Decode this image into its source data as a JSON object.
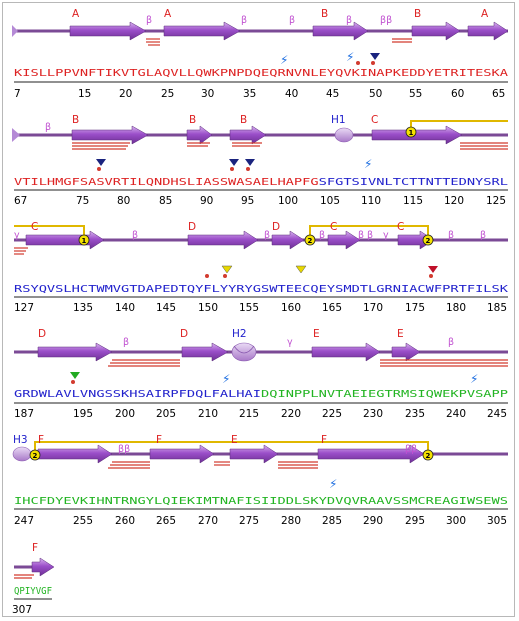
{
  "colors": {
    "strand": "#9b4fc9",
    "strand_light": "#c89ae6",
    "coil": "#7b4a96",
    "hairpin": "#d23b2f",
    "disulfide": "#e0b800",
    "seq_red": "#dd2222",
    "seq_blue": "#2222cc",
    "seq_green": "#22b422",
    "helix": "#c9a2e0"
  },
  "rows": [
    {
      "segments": [
        {
          "text": "KISLLPPVNFTIKVTGLAQVLLQWKPNPDQEQRNVNLEYQVKINAPKEDDYETRITESKA",
          "color": "seq_red"
        }
      ],
      "numbers": [
        "7",
        "15",
        "20",
        "25",
        "30",
        "35",
        "40",
        "45",
        "50",
        "55",
        "60",
        "65"
      ],
      "labels": [
        "A",
        "A",
        "B",
        "B",
        "A",
        "β",
        "β",
        "β",
        "β",
        "ββ"
      ],
      "markers": [
        "bolt",
        "bolt",
        "triangle-navy"
      ]
    },
    {
      "segments": [
        {
          "text": "VTILHMGFSASVRTILQNDHSLIASSWASAELHAPFG",
          "color": "seq_red"
        },
        {
          "text": "SFGTSIVNLTCTTNTTEDNYSRL",
          "color": "seq_blue"
        }
      ],
      "numbers": [
        "67",
        "75",
        "80",
        "85",
        "90",
        "95",
        "100",
        "105",
        "110",
        "115",
        "120",
        "125"
      ],
      "labels": [
        "B",
        "B",
        "B",
        "H1",
        "C",
        "β"
      ],
      "markers": [
        "bolt",
        "triangle-navy",
        "triangle-navy",
        "triangle-navy",
        "bond-1"
      ]
    },
    {
      "segments": [
        {
          "text": "RSYQVSLHCTWMVGTDAPEDTQYFLYYRYGSWTEECQEYSMDTLGRNIACWFPRTFILSK",
          "color": "seq_blue"
        }
      ],
      "numbers": [
        "127",
        "135",
        "140",
        "145",
        "150",
        "155",
        "160",
        "165",
        "170",
        "175",
        "180",
        "185"
      ],
      "labels": [
        "C",
        "D",
        "D",
        "C",
        "C",
        "γ",
        "β",
        "β",
        "β",
        "β",
        "β",
        "γ",
        "β",
        "β"
      ],
      "markers": [
        "triangle-yellow",
        "triangle-yellow",
        "triangle-red",
        "bond-1",
        "bond-2",
        "bond-2"
      ]
    },
    {
      "segments": [
        {
          "text": "GRDWLAVLVNGSSKHSAIRPFDQLFALHAI",
          "color": "seq_blue"
        },
        {
          "text": "DQINPPLNVTAEIEGTRMSIQWEKPVSAPP",
          "color": "seq_green"
        }
      ],
      "numbers": [
        "187",
        "195",
        "200",
        "205",
        "210",
        "215",
        "220",
        "225",
        "230",
        "235",
        "240",
        "245"
      ],
      "labels": [
        "D",
        "D",
        "H2",
        "E",
        "E",
        "β",
        "γ",
        "β"
      ],
      "markers": [
        "triangle-green",
        "bolt",
        "bolt"
      ]
    },
    {
      "segments": [
        {
          "text": "IHCFDYEVKIHNTRNGYLQIEKIMTNAFISIIDDLSKYDVQVRAAVSSMCREAGIWSEWS",
          "color": "seq_green"
        }
      ],
      "numbers": [
        "247",
        "255",
        "260",
        "265",
        "270",
        "275",
        "280",
        "285",
        "290",
        "295",
        "300",
        "305"
      ],
      "labels": [
        "H3",
        "F",
        "F",
        "E",
        "F",
        "ββ",
        "ββ"
      ],
      "markers": [
        "bolt",
        "bond-2",
        "bond-2"
      ]
    },
    {
      "segments": [
        {
          "text": "QPIYVGF",
          "color": "seq_green"
        }
      ],
      "numbers": [
        "307"
      ],
      "labels": [
        "F"
      ],
      "markers": []
    }
  ]
}
